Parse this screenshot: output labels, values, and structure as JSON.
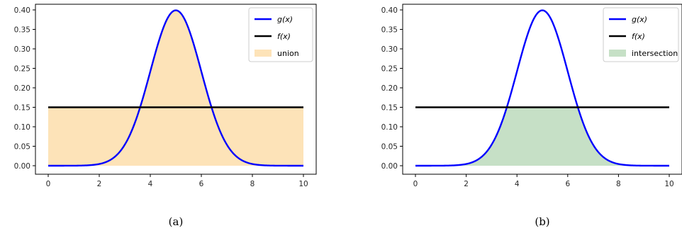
{
  "chart_data": [
    {
      "type": "line",
      "caption": "(a)",
      "xlim": [
        0,
        10
      ],
      "ylim": [
        0,
        0.4
      ],
      "xticks": [
        "0",
        "2",
        "4",
        "6",
        "8",
        "10"
      ],
      "yticks": [
        "0.00",
        "0.05",
        "0.10",
        "0.15",
        "0.20",
        "0.25",
        "0.30",
        "0.35",
        "0.40"
      ],
      "grid": false,
      "legend_position": "top-right",
      "series": [
        {
          "name": "g(x)",
          "color": "#0000ff",
          "kind": "gaussian",
          "mean": 5,
          "std": 1,
          "peak": 0.399
        },
        {
          "name": "f(x)",
          "color": "#000000",
          "kind": "constant",
          "value": 0.15
        }
      ],
      "fill": {
        "label": "union",
        "mode": "max",
        "color": "#fde3b8"
      }
    },
    {
      "type": "line",
      "caption": "(b)",
      "xlim": [
        0,
        10
      ],
      "ylim": [
        0,
        0.4
      ],
      "xticks": [
        "0",
        "2",
        "4",
        "6",
        "8",
        "10"
      ],
      "yticks": [
        "0.00",
        "0.05",
        "0.10",
        "0.15",
        "0.20",
        "0.25",
        "0.30",
        "0.35",
        "0.40"
      ],
      "grid": false,
      "legend_position": "top-right",
      "series": [
        {
          "name": "g(x)",
          "color": "#0000ff",
          "kind": "gaussian",
          "mean": 5,
          "std": 1,
          "peak": 0.399
        },
        {
          "name": "f(x)",
          "color": "#000000",
          "kind": "constant",
          "value": 0.15
        }
      ],
      "fill": {
        "label": "intersection",
        "mode": "min",
        "color": "#c6e0c6"
      }
    }
  ]
}
